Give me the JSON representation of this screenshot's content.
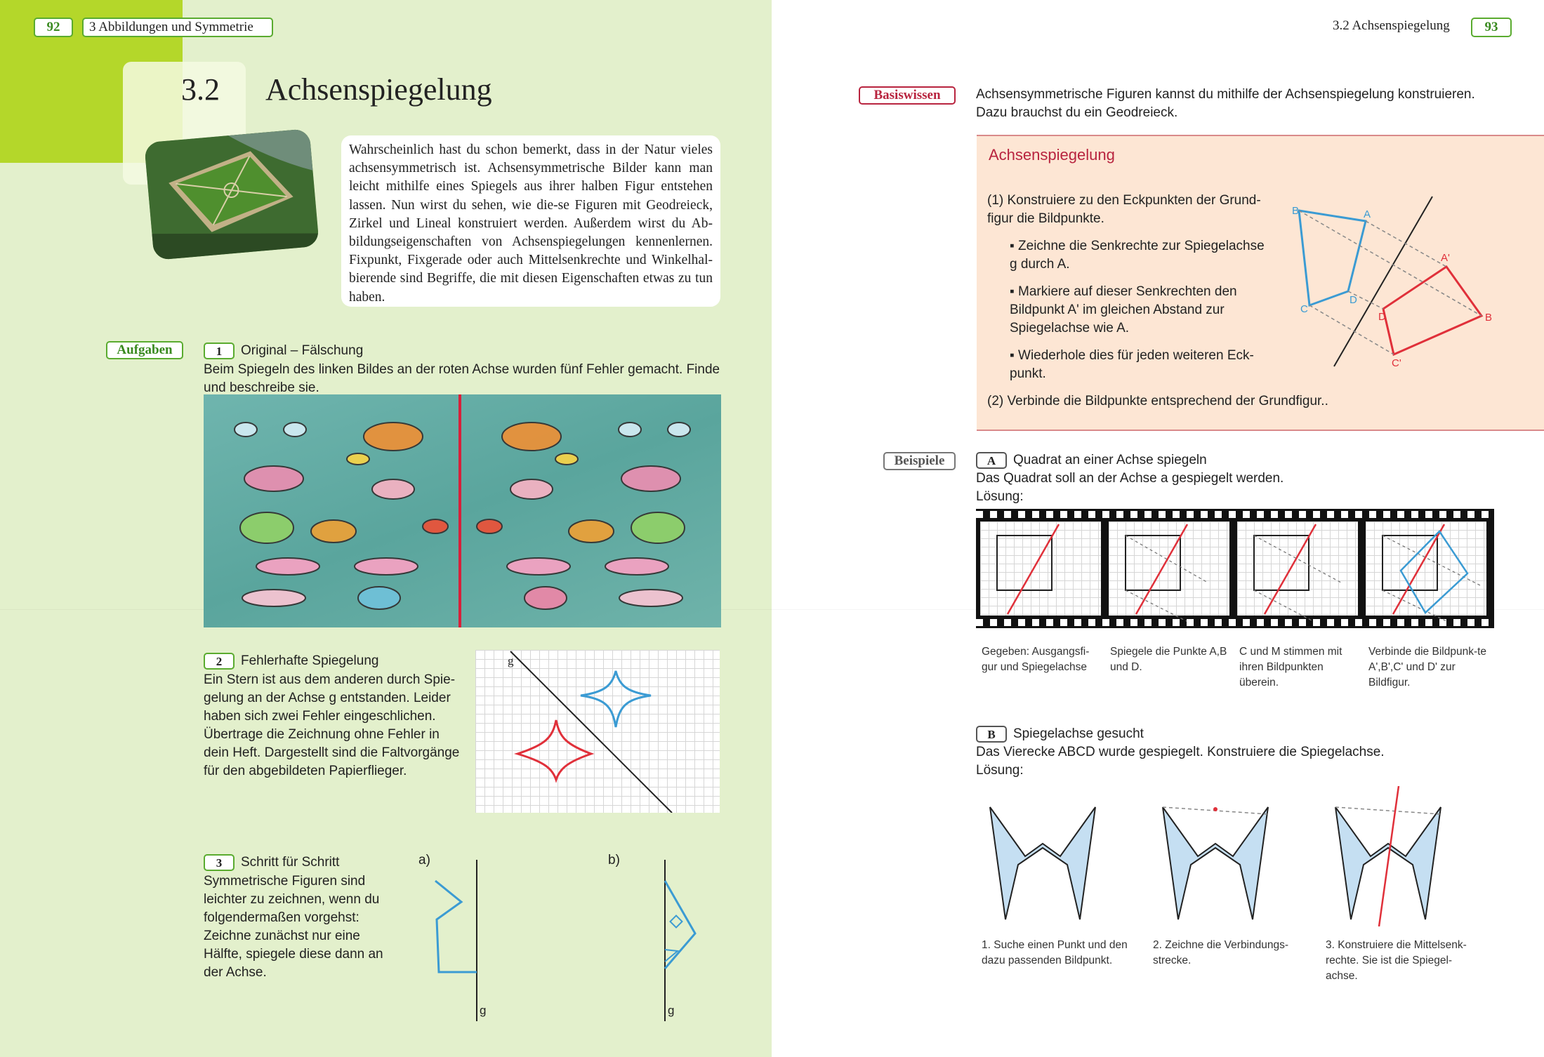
{
  "left_page": {
    "page_number": "92",
    "chapter_header": "3 Abbildungen und Symmetrie",
    "section_number": "3.2",
    "section_title": "Achsenspiegelung",
    "intro_text": "Wahrscheinlich hast du schon bemerkt, dass in der Natur vieles achsensymmetrisch ist. Achsensymmetrische Bilder kann man leicht mithilfe eines Spiegels aus ihrer halben Figur entstehen lassen. Nun wirst du sehen, wie die-se Figuren mit Geodreieck, Zirkel und Lineal konstruiert werden. Außerdem wirst du Ab-bildungseigenschaften von Achsenspiegelungen kennenlernen. Fixpunkt, Fixgerade oder auch Mittelsenkrechte und Winkelhal-bierende sind Begriffe, die mit diesen Eigenschaften etwas zu tun haben.",
    "aufgaben_label": "Aufgaben",
    "task1": {
      "number": "1",
      "title": "Original – Fälschung",
      "text": "Beim Spiegeln des linken Bildes an der roten Achse wurden fünf Fehler gemacht. Finde und beschreibe sie."
    },
    "task2": {
      "number": "2",
      "title": "Fehlerhafte Spiegelung",
      "text": "Ein Stern ist aus dem anderen durch Spie-gelung an der Achse g entstanden. Leider haben sich zwei Fehler eingeschlichen. Übertrage die Zeichnung ohne Fehler in dein Heft. Dargestellt sind die Faltvorgänge für den abgebildeten Papierflieger.",
      "axis_label": "g"
    },
    "task3": {
      "number": "3",
      "title": "Schritt für Schritt",
      "text": "Symmetrische Figuren sind leichter zu zeichnen, wenn du folgendermaßen vorgehst: Zeichne zunächst nur eine Hälfte, spiegele diese dann an der Achse.",
      "part_a": "a)",
      "part_b": "b)",
      "axis_label": "g"
    }
  },
  "right_page": {
    "page_number": "93",
    "header": "3.2 Achsenspiegelung",
    "basiswissen_label": "Basiswissen",
    "basiswissen_intro": "Achsensymmetrische Figuren kannst du mithilfe der Achsenspiegelung konstruieren. Dazu brauchst du ein Geodreieck.",
    "box_title": "Achsenspiegelung",
    "step1": "(1) Konstruiere zu den Eckpunkten der Grund-figur die Bildpunkte.",
    "bullet1": "Zeichne die Senkrechte zur Spiegelachse g durch A.",
    "bullet2": "Markiere auf dieser Senkrechten den Bildpunkt A' im gleichen Abstand zur Spiegelachse wie A.",
    "bullet3": "Wiederhole dies für jeden weiteren Eck-punkt.",
    "step2": "(2) Verbinde die Bildpunkte entsprechend der Grundfigur..",
    "box_figure_labels": {
      "A": "A",
      "B": "B",
      "C": "C",
      "D": "D",
      "A_img": "A'",
      "B_img": "B",
      "C_img": "C'",
      "D_img": "D"
    },
    "beispiele_label": "Beispiele",
    "exampleA": {
      "letter": "A",
      "title": "Quadrat an einer Achse spiegeln",
      "text": "Das Quadrat soll an der Achse a gespiegelt werden.",
      "solution_label": "Lösung:",
      "captions": [
        "Gegeben: Ausgangsfi-gur und Spiegelachse",
        "Spiegele die Punkte A,B und D.",
        "C und M stimmen mit ihren Bildpunkten überein.",
        "Verbinde die Bildpunk-te A',B',C' und D' zur Bildfigur."
      ]
    },
    "exampleB": {
      "letter": "B",
      "title": "Spiegelachse gesucht",
      "text": "Das Vierecke ABCD wurde gespiegelt. Konstruiere die Spiegelachse.",
      "solution_label": "Lösung:",
      "captions": [
        "1. Suche einen Punkt und den dazu passenden Bildpunkt.",
        "2. Zeichne die Verbindungs-strecke.",
        "3. Konstruiere die Mittelsenk-rechte. Sie ist die Spiegel-achse."
      ]
    }
  },
  "colors": {
    "left_bg": "#e3f0cc",
    "corner_green": "#b4d72a",
    "accent_green": "#5aab2f",
    "basis_red": "#b8243f",
    "box_bg": "#fde6d4",
    "blue": "#3b9bd3",
    "red": "#e0303a"
  }
}
